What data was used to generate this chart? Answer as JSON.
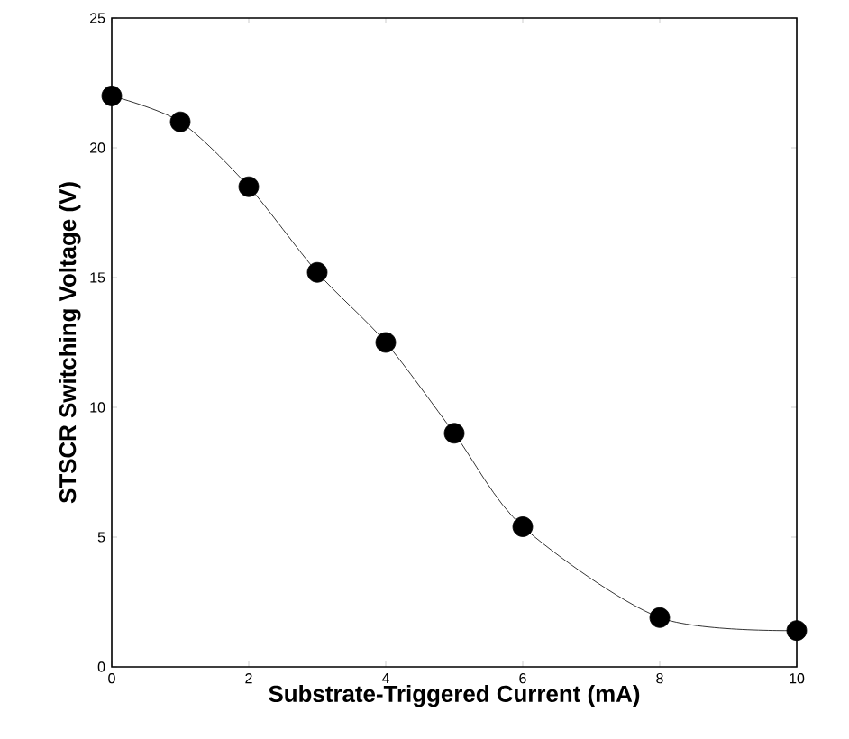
{
  "chart_data": {
    "type": "line",
    "xlabel": "Substrate-Triggered Current (mA)",
    "ylabel": "STSCR Switching Voltage (V)",
    "x": [
      0,
      1,
      2,
      3,
      4,
      5,
      6,
      8,
      10
    ],
    "series": [
      {
        "color": "#000000",
        "values": [
          22,
          21,
          18.5,
          15.2,
          12.5,
          9,
          5.4,
          1.9,
          1.4
        ]
      }
    ],
    "xlim": [
      0,
      10
    ],
    "ylim": [
      0,
      25
    ],
    "xticks": [
      0,
      2,
      4,
      6,
      8,
      10
    ],
    "yticks": [
      0,
      5,
      10,
      15,
      20,
      25
    ],
    "marker": "circle",
    "line_style": "solid"
  }
}
